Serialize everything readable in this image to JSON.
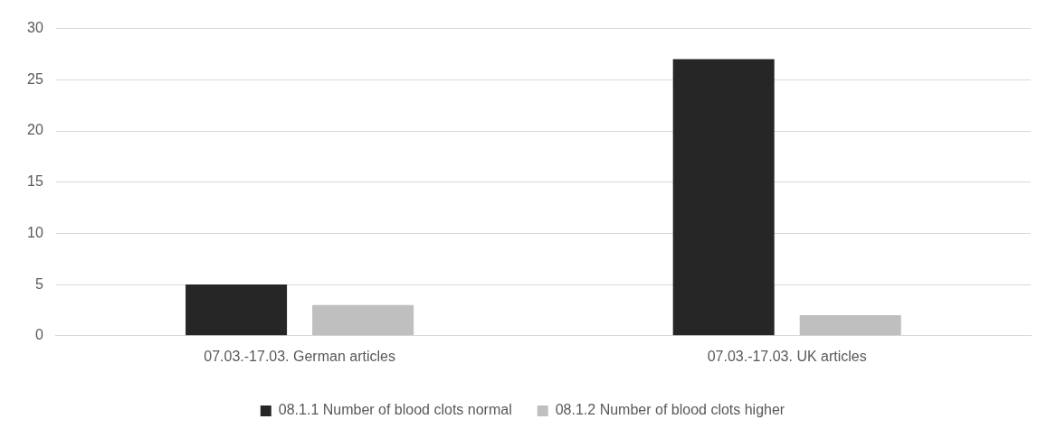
{
  "chart_data": {
    "type": "bar",
    "categories": [
      "07.03.-17.03. German articles",
      "07.03.-17.03. UK articles"
    ],
    "series": [
      {
        "name": "08.1.1 Number of blood clots normal",
        "color": "#262626",
        "values": [
          5,
          27
        ]
      },
      {
        "name": "08.1.2 Number of blood clots higher",
        "color": "#bfbfbf",
        "values": [
          3,
          2
        ]
      }
    ],
    "ylim": [
      0,
      30
    ],
    "yticks": [
      0,
      5,
      10,
      15,
      20,
      25,
      30
    ],
    "grid": "y",
    "legend": "bottom"
  }
}
